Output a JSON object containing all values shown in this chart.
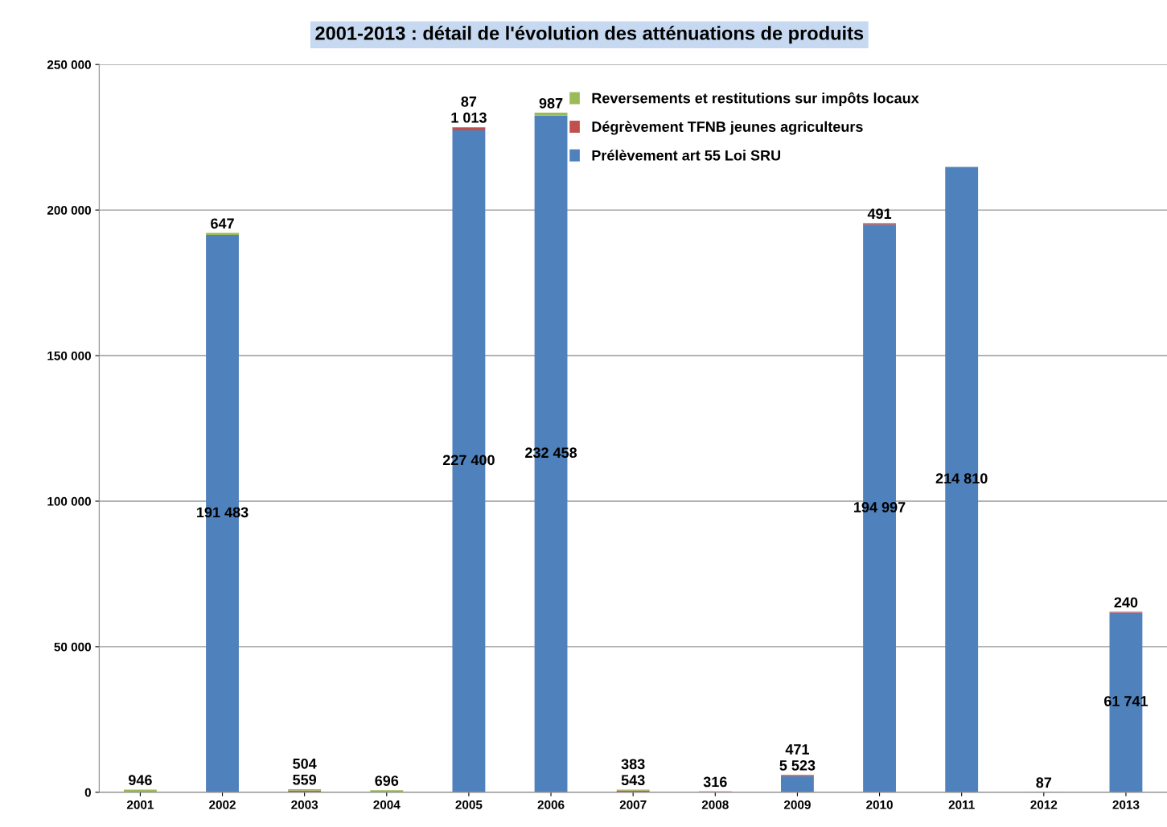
{
  "chart_data": {
    "type": "bar",
    "stacked": true,
    "title": "2001-2013 : détail de l'évolution des atténuations de produits",
    "categories": [
      "2001",
      "2002",
      "2003",
      "2004",
      "2005",
      "2006",
      "2007",
      "2008",
      "2009",
      "2010",
      "2011",
      "2012",
      "2013"
    ],
    "series": [
      {
        "name": "Prélèvement art 55 Loi SRU",
        "color": "#4f81bd",
        "values": [
          null,
          191483,
          null,
          null,
          227400,
          232458,
          null,
          null,
          5523,
          194997,
          214810,
          null,
          61741
        ],
        "value_labels": [
          null,
          "191 483",
          null,
          null,
          "227 400",
          "232 458",
          null,
          null,
          "5 523",
          "194 997",
          "214 810",
          null,
          "61 741"
        ]
      },
      {
        "name": "Dégrèvement TFNB jeunes agriculteurs",
        "color": "#c0504d",
        "values": [
          null,
          null,
          559,
          null,
          1013,
          null,
          543,
          316,
          471,
          491,
          null,
          87,
          240
        ],
        "value_labels": [
          null,
          null,
          "559",
          null,
          "1 013",
          null,
          "543",
          "316",
          "471",
          "491",
          null,
          "87",
          "240"
        ]
      },
      {
        "name": "Reversements et restitutions sur impôts locaux",
        "color": "#9bbb59",
        "values": [
          946,
          647,
          504,
          696,
          87,
          987,
          383,
          null,
          null,
          null,
          null,
          null,
          null
        ],
        "value_labels": [
          "946",
          "647",
          "504",
          "696",
          "87",
          "987",
          "383",
          null,
          null,
          null,
          null,
          null,
          null
        ]
      }
    ],
    "ylim": [
      0,
      250000
    ],
    "yticks": [
      {
        "value": 0,
        "label": "0"
      },
      {
        "value": 50000,
        "label": "50 000"
      },
      {
        "value": 100000,
        "label": "100 000"
      },
      {
        "value": 150000,
        "label": "150 000"
      },
      {
        "value": 200000,
        "label": "200 000"
      },
      {
        "value": 250000,
        "label": "250 000"
      }
    ],
    "grid": "y",
    "legend": "top right"
  }
}
